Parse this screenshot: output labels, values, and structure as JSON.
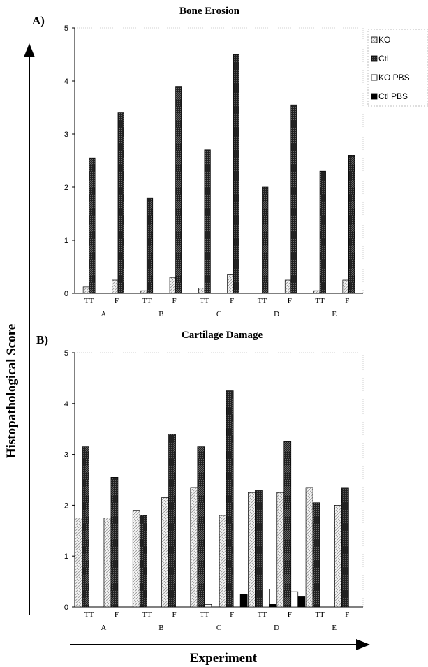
{
  "figure": {
    "y_axis_label": "Histopathological Score",
    "x_axis_label": "Experiment"
  },
  "chart_data": [
    {
      "type": "bar",
      "panel_label": "A)",
      "title": "Bone Erosion",
      "ylim": [
        0,
        5
      ],
      "yticks": [
        "0",
        "1",
        "2",
        "3",
        "4",
        "5"
      ],
      "groups": [
        "A",
        "B",
        "C",
        "D",
        "E"
      ],
      "categories": [
        "TT",
        "F",
        "TT",
        "F",
        "TT",
        "F",
        "TT",
        "F",
        "TT",
        "F"
      ],
      "series": [
        {
          "name": "KO",
          "values": [
            0.12,
            0.25,
            0.05,
            0.3,
            0.1,
            0.35,
            0.0,
            0.25,
            0.05,
            0.25
          ]
        },
        {
          "name": "Ctl",
          "values": [
            2.55,
            3.4,
            1.8,
            3.9,
            2.7,
            4.5,
            2.0,
            3.55,
            2.3,
            2.6
          ]
        }
      ],
      "legend": [
        "KO",
        "Ctl",
        "KO PBS",
        "Ctl PBS"
      ],
      "legend_position": "right",
      "grid": false
    },
    {
      "type": "bar",
      "panel_label": "B)",
      "title": "Cartilage Damage",
      "ylim": [
        0,
        5
      ],
      "yticks": [
        "0",
        "1",
        "2",
        "3",
        "4",
        "5"
      ],
      "groups": [
        "A",
        "B",
        "C",
        "D",
        "E"
      ],
      "categories": [
        "TT",
        "F",
        "TT",
        "F",
        "TT",
        "F",
        "TT",
        "F",
        "TT",
        "F"
      ],
      "series": [
        {
          "name": "KO",
          "values": [
            1.75,
            1.75,
            1.9,
            2.15,
            2.35,
            1.8,
            2.25,
            2.25,
            2.35,
            2.0
          ]
        },
        {
          "name": "Ctl",
          "values": [
            3.15,
            2.55,
            1.8,
            3.4,
            3.15,
            4.25,
            2.3,
            3.25,
            2.05,
            2.35
          ]
        },
        {
          "name": "KO PBS",
          "values": [
            0,
            0,
            0,
            0,
            0.05,
            0,
            0.35,
            0.3,
            0,
            0
          ]
        },
        {
          "name": "Ctl PBS",
          "values": [
            0,
            0,
            0,
            0,
            0,
            0.25,
            0.05,
            0.2,
            0,
            0
          ]
        }
      ],
      "grid": false
    }
  ],
  "colors": {
    "KO": "#f2f2f2",
    "Ctl": "#3a3a3a",
    "KO PBS": "#ffffff",
    "Ctl PBS": "#000000"
  }
}
